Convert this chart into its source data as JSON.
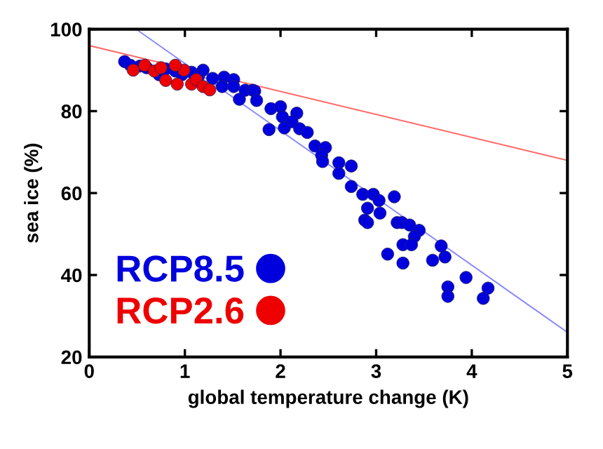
{
  "chart_data": {
    "type": "scatter",
    "xlabel": "global temperature change (K)",
    "ylabel": "sea ice (%)",
    "xlim": [
      0,
      5
    ],
    "ylim": [
      20,
      100
    ],
    "xticks": [
      0,
      1,
      2,
      3,
      4,
      5
    ],
    "yticks": [
      20,
      40,
      60,
      80,
      100
    ],
    "grid": false,
    "legend": "bottom left",
    "series": [
      {
        "name": "RCP2.6",
        "color": "#ee0000",
        "marker": "circle",
        "x": [
          0.46,
          0.58,
          0.68,
          0.8,
          0.92,
          0.99,
          1.07,
          1.12,
          1.19,
          1.26,
          0.9,
          0.75
        ],
        "values": [
          90.0,
          91.2,
          89.8,
          87.5,
          86.6,
          90.0,
          86.6,
          87.7,
          86.0,
          85.2,
          91.2,
          90.6
        ]
      },
      {
        "name": "RCP8.5",
        "color": "#0000dd",
        "marker": "circle",
        "x": [
          0.37,
          0.43,
          0.53,
          0.6,
          0.73,
          0.8,
          0.9,
          0.97,
          1.07,
          1.19,
          1.14,
          1.29,
          1.41,
          1.51,
          1.39,
          1.51,
          1.63,
          1.71,
          1.57,
          1.73,
          1.75,
          1.9,
          2.0,
          2.02,
          2.17,
          2.12,
          2.04,
          1.88,
          2.2,
          2.28,
          2.36,
          2.47,
          2.43,
          2.44,
          2.61,
          2.74,
          2.61,
          2.74,
          2.86,
          2.97,
          3.03,
          3.19,
          2.91,
          3.04,
          2.88,
          2.91,
          3.22,
          3.27,
          3.35,
          3.45,
          3.4,
          3.28,
          3.37,
          3.68,
          3.72,
          3.59,
          3.12,
          3.28,
          3.94,
          3.75,
          3.75,
          4.17,
          4.12
        ],
        "values": [
          92.1,
          91.2,
          91.0,
          90.6,
          88.9,
          90.3,
          89.8,
          88.9,
          89.5,
          90.0,
          88.3,
          88.0,
          88.3,
          87.7,
          86.0,
          86.0,
          85.1,
          85.1,
          82.9,
          84.9,
          82.6,
          80.6,
          81.1,
          78.6,
          79.5,
          77.4,
          75.9,
          75.5,
          75.7,
          74.8,
          71.5,
          71.1,
          69.2,
          67.7,
          67.4,
          66.6,
          64.8,
          61.6,
          59.7,
          59.7,
          58.2,
          59.1,
          56.3,
          55.1,
          53.4,
          52.8,
          52.8,
          52.8,
          52.2,
          50.9,
          49.4,
          47.4,
          47.4,
          47.1,
          44.4,
          43.6,
          45.1,
          42.9,
          39.4,
          37.1,
          34.8,
          36.8,
          34.3
        ]
      },
      {
        "type": "line",
        "marker": "none",
        "color": "#ff6666",
        "x": [
          0,
          5
        ],
        "values": [
          96,
          68
        ]
      },
      {
        "type": "line",
        "marker": "none",
        "color": "#8888ff",
        "x": [
          0.49,
          5
        ],
        "values": [
          100,
          26
        ]
      }
    ]
  }
}
